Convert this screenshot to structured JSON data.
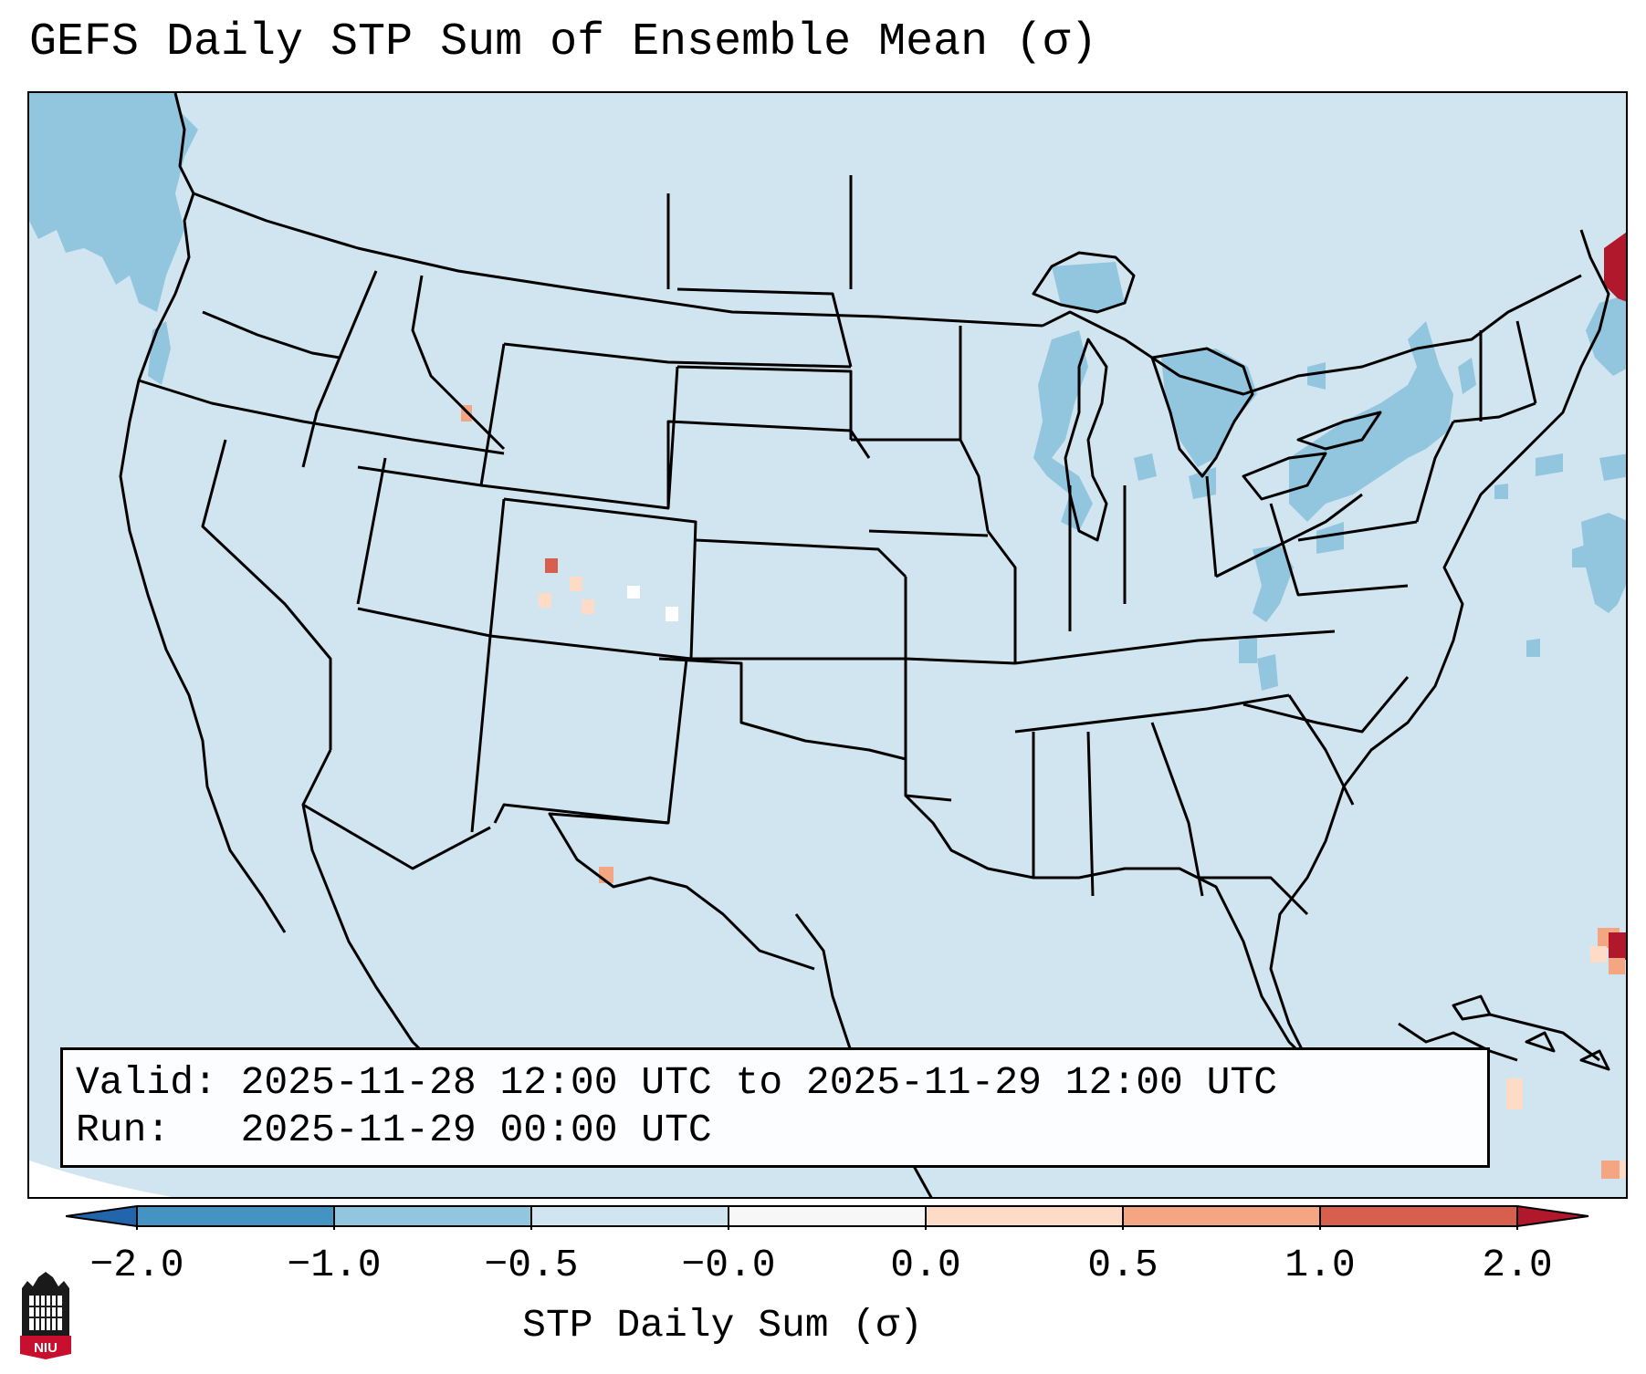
{
  "title": "GEFS Daily STP Sum of Ensemble Mean (σ)",
  "info": {
    "valid_line": "Valid: 2025-11-28 12:00 UTC to 2025-11-29 12:00 UTC",
    "run_line": "Run:   2025-11-29 00:00 UTC"
  },
  "colorbar": {
    "label": "STP Daily Sum (σ)",
    "ticks": [
      "−2.0",
      "−1.0",
      "−0.5",
      "−0.0",
      "0.0",
      "0.5",
      "1.0",
      "2.0"
    ],
    "colors": [
      "#2166ac",
      "#4393c3",
      "#92c5de",
      "#d1e5f0",
      "#fddbc7",
      "#f4a582",
      "#d6604d",
      "#b2182b"
    ],
    "extend": "both"
  },
  "map": {
    "region": "Contiguous United States",
    "background_value_color": "#d1e5f0"
  },
  "logo": {
    "text": "NIU"
  }
}
